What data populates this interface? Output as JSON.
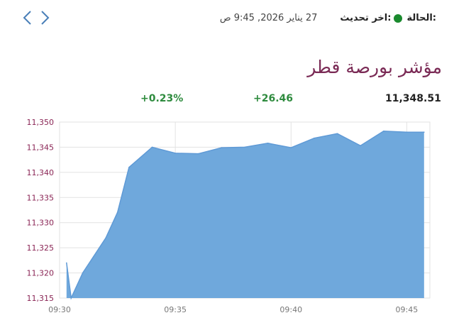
{
  "status": {
    "label": "الحالة:",
    "dot_color": "#1a8a2e",
    "update_label": "اخر تحديث:",
    "update_value": "27 يناير 2026, 9:45 ص"
  },
  "title": "مؤشر بورصة قطر",
  "metrics": {
    "value": "11,348.51",
    "change": "+26.46",
    "percent": "+0.23%",
    "positive_color": "#2e8b3e"
  },
  "colors": {
    "area_fill": "#6fa8dc",
    "line": "#5f9ad6",
    "y_tick": "#8a2555",
    "x_tick": "#777777",
    "grid": "#e2e2e2"
  },
  "chart_data": {
    "type": "area",
    "title": "",
    "xlabel": "",
    "ylabel": "",
    "x_ticks": [
      "09:30",
      "09:35",
      "09:40",
      "09:45"
    ],
    "y_ticks": [
      "11,315",
      "11,320",
      "11,325",
      "11,330",
      "11,335",
      "11,340",
      "11,345",
      "11,350"
    ],
    "xlim": [
      "09:30",
      "09:46"
    ],
    "ylim": [
      11315,
      11350
    ],
    "grid": true,
    "x": [
      "09:30:18",
      "09:30:30",
      "09:31",
      "09:32",
      "09:32:30",
      "09:33",
      "09:34",
      "09:35",
      "09:36",
      "09:37",
      "09:38",
      "09:39",
      "09:40",
      "09:41",
      "09:42",
      "09:43",
      "09:44",
      "09:45",
      "09:45:45"
    ],
    "values": [
      11322,
      11315,
      11320,
      11327,
      11332,
      11341,
      11345,
      11343.8,
      11343.7,
      11344.9,
      11345,
      11345.8,
      11344.9,
      11346.8,
      11347.7,
      11345.3,
      11348.2,
      11348,
      11348
    ]
  }
}
